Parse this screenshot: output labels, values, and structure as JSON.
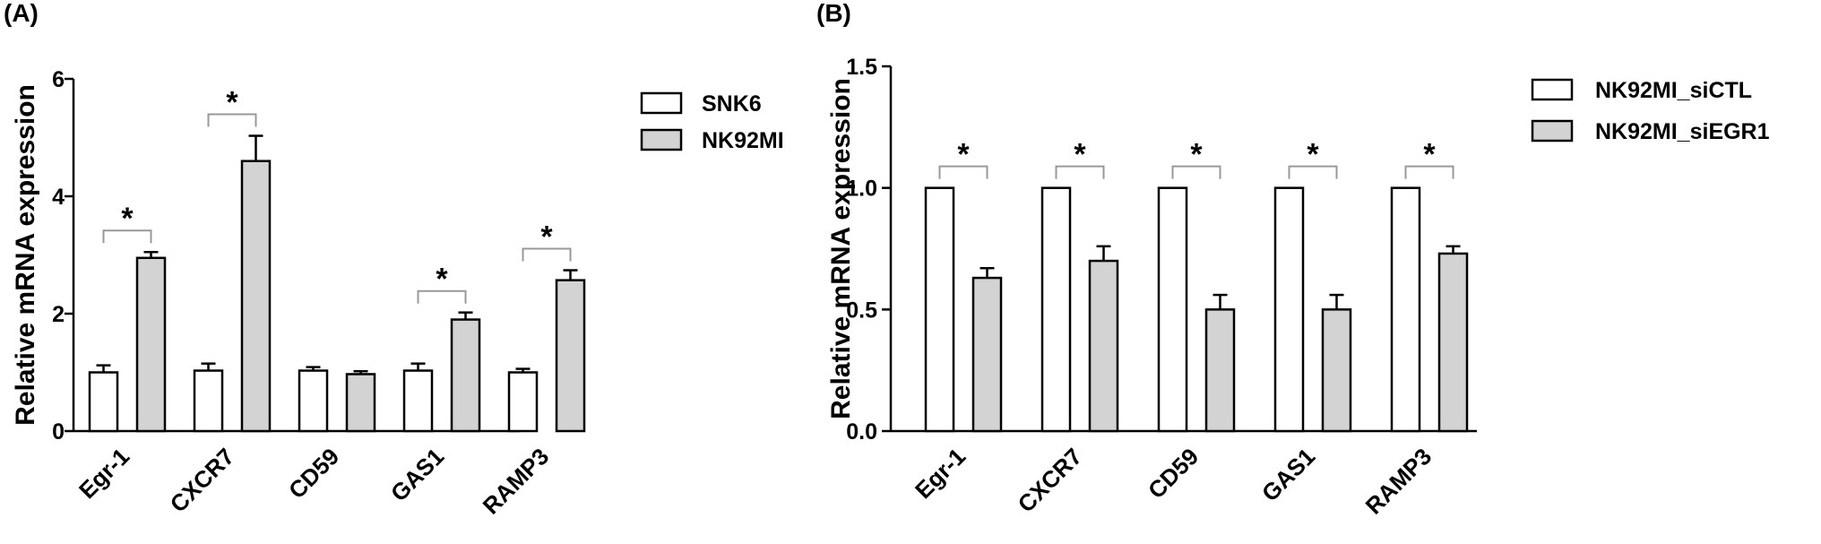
{
  "colors": {
    "white_bar": "#ffffff",
    "grey_bar": "#d3d3d3",
    "bracket": "#999999",
    "axis": "#000000"
  },
  "chart_data": [
    {
      "panel_label": "(A)",
      "type": "bar",
      "ylabel": "Relative mRNA expression",
      "ylim": [
        0,
        6
      ],
      "yticks": [
        "0",
        "2",
        "4",
        "6"
      ],
      "categories": [
        "Egr-1",
        "CXCR7",
        "CD59",
        "GAS1",
        "RAMP3"
      ],
      "legend_position": "right",
      "series": [
        {
          "name": "SNK6",
          "color": "#ffffff",
          "values": [
            1.0,
            1.03,
            1.03,
            1.03,
            1.0
          ],
          "errors": [
            0.12,
            0.12,
            0.06,
            0.12,
            0.06
          ]
        },
        {
          "name": "NK92MI",
          "color": "#d3d3d3",
          "values": [
            2.95,
            4.6,
            0.97,
            1.9,
            2.57
          ],
          "errors": [
            0.1,
            0.43,
            0.05,
            0.12,
            0.17
          ]
        }
      ],
      "significance": [
        "*",
        "*",
        "",
        "*",
        "*"
      ]
    },
    {
      "panel_label": "(B)",
      "type": "bar",
      "ylabel": "Relative mRNA expression",
      "ylim": [
        0,
        1.5
      ],
      "yticks": [
        "0.0",
        "0.5",
        "1.0",
        "1.5"
      ],
      "categories": [
        "Egr-1",
        "CXCR7",
        "CD59",
        "GAS1",
        "RAMP3"
      ],
      "legend_position": "right",
      "series": [
        {
          "name": "NK92MI_siCTL",
          "color": "#ffffff",
          "values": [
            1.0,
            1.0,
            1.0,
            1.0,
            1.0
          ],
          "errors": [
            0,
            0,
            0,
            0,
            0
          ]
        },
        {
          "name": "NK92MI_siEGR1",
          "color": "#d3d3d3",
          "values": [
            0.63,
            0.7,
            0.5,
            0.5,
            0.73
          ],
          "errors": [
            0.04,
            0.06,
            0.06,
            0.06,
            0.03
          ]
        }
      ],
      "significance": [
        "*",
        "*",
        "*",
        "*",
        "*"
      ]
    }
  ]
}
